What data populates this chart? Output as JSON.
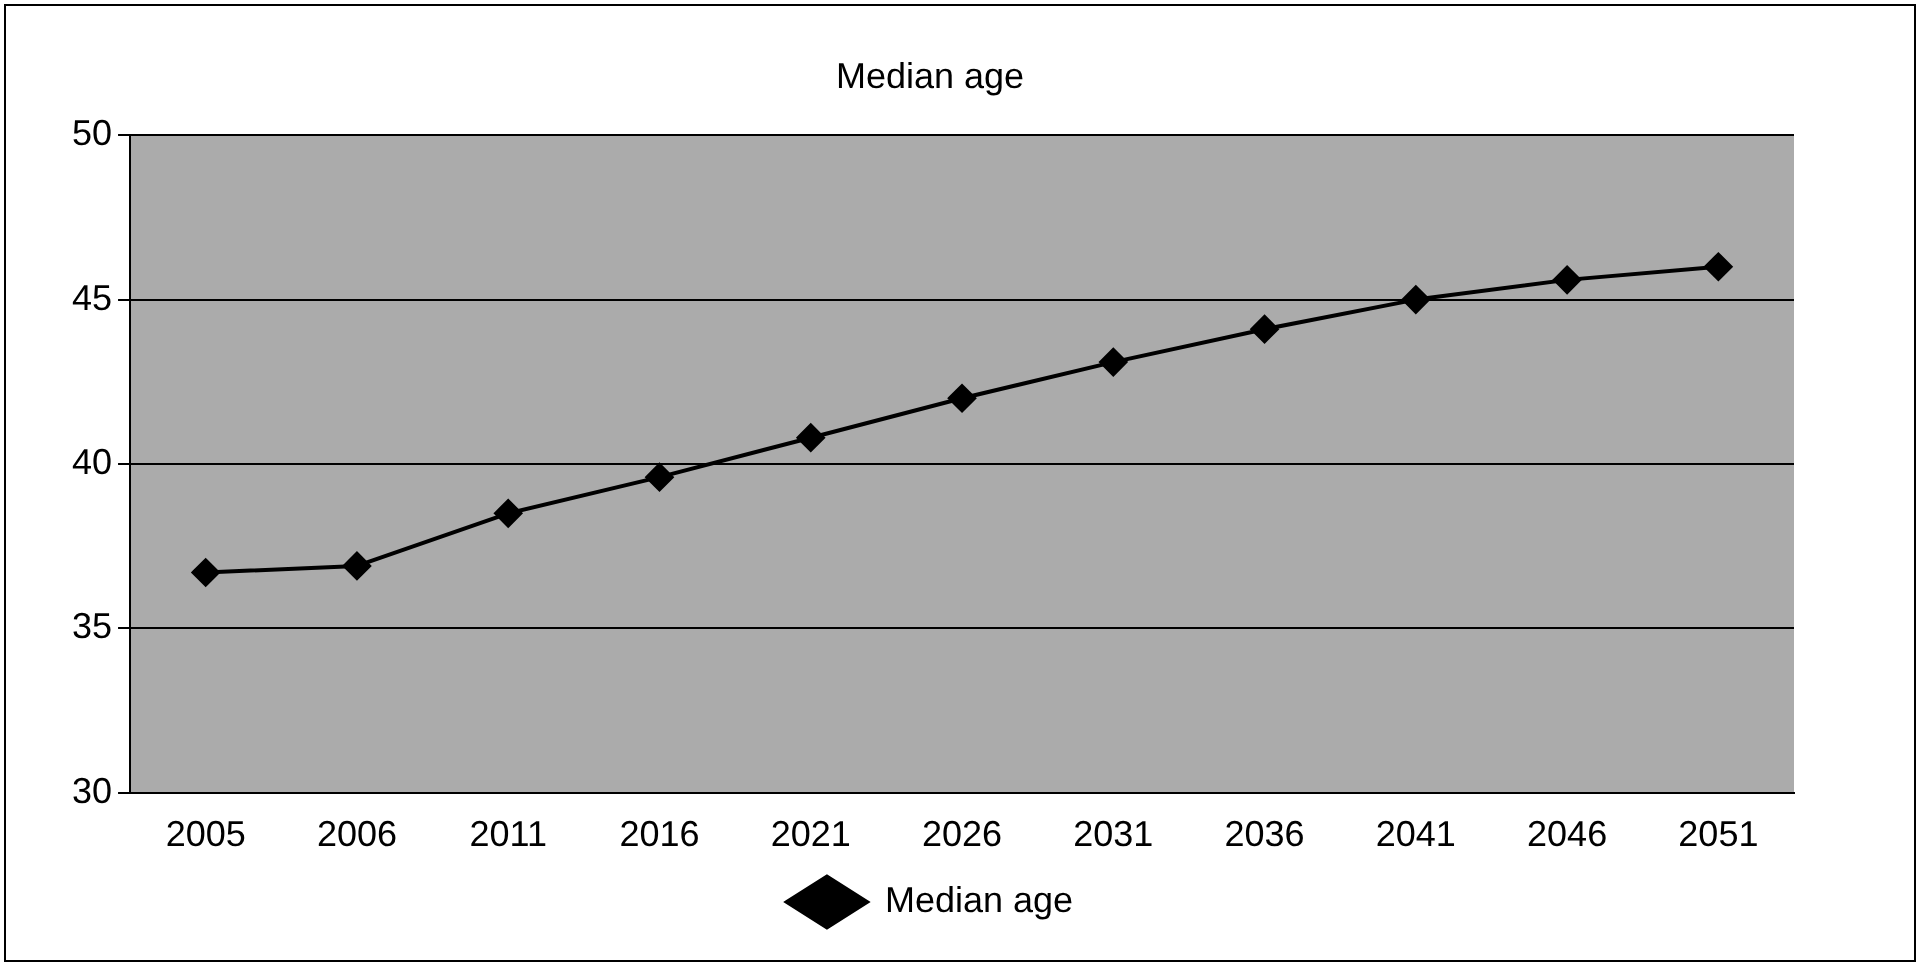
{
  "chart_data": {
    "type": "line",
    "title": "Median age",
    "categories": [
      "2005",
      "2006",
      "2011",
      "2016",
      "2021",
      "2026",
      "2031",
      "2036",
      "2041",
      "2046",
      "2051"
    ],
    "series": [
      {
        "name": "Median age",
        "color": "#000000",
        "values": [
          36.7,
          36.9,
          38.5,
          39.6,
          40.8,
          42.0,
          43.1,
          44.1,
          45.0,
          45.6,
          46.0
        ]
      }
    ],
    "ylim": [
      30,
      50
    ],
    "yticks": [
      30,
      35,
      40,
      45,
      50
    ],
    "grid": "y",
    "legend": "bottom",
    "marker": "diamond",
    "line_style": "solid"
  }
}
